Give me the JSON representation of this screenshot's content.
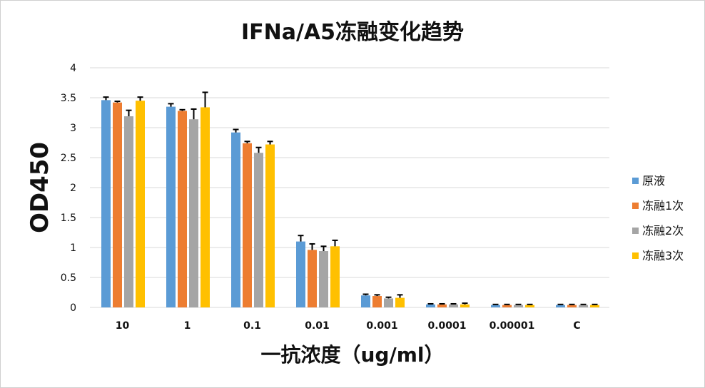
{
  "chart_data": {
    "type": "bar",
    "title": "IFNa/A5冻融变化趋势",
    "xlabel": "一抗浓度（ug/ml）",
    "ylabel": "OD450",
    "ylim": [
      0,
      4
    ],
    "yticks": [
      "0",
      "0.5",
      "1",
      "1.5",
      "2",
      "2.5",
      "3",
      "3.5",
      "4"
    ],
    "grid": true,
    "legend_position": "right",
    "categories": [
      "10",
      "1",
      "0.1",
      "0.01",
      "0.001",
      "0.0001",
      "0.00001",
      "C"
    ],
    "series": [
      {
        "name": "原液",
        "color": "#5B9BD5",
        "values": [
          3.46,
          3.35,
          2.92,
          1.1,
          0.2,
          0.05,
          0.04,
          0.04
        ],
        "errors": [
          0.05,
          0.05,
          0.05,
          0.1,
          0.02,
          0.01,
          0.01,
          0.01
        ]
      },
      {
        "name": "冻融1次",
        "color": "#ED7D31",
        "values": [
          3.42,
          3.28,
          2.74,
          0.96,
          0.19,
          0.05,
          0.04,
          0.04
        ],
        "errors": [
          0.02,
          0.02,
          0.03,
          0.1,
          0.02,
          0.01,
          0.01,
          0.01
        ]
      },
      {
        "name": "冻融2次",
        "color": "#A5A5A5",
        "values": [
          3.19,
          3.14,
          2.58,
          0.94,
          0.15,
          0.05,
          0.04,
          0.04
        ],
        "errors": [
          0.1,
          0.17,
          0.09,
          0.08,
          0.02,
          0.01,
          0.01,
          0.01
        ]
      },
      {
        "name": "冻融3次",
        "color": "#FFC000",
        "values": [
          3.45,
          3.34,
          2.72,
          1.02,
          0.16,
          0.05,
          0.04,
          0.04
        ],
        "errors": [
          0.06,
          0.25,
          0.05,
          0.1,
          0.05,
          0.02,
          0.01,
          0.01
        ]
      }
    ]
  }
}
